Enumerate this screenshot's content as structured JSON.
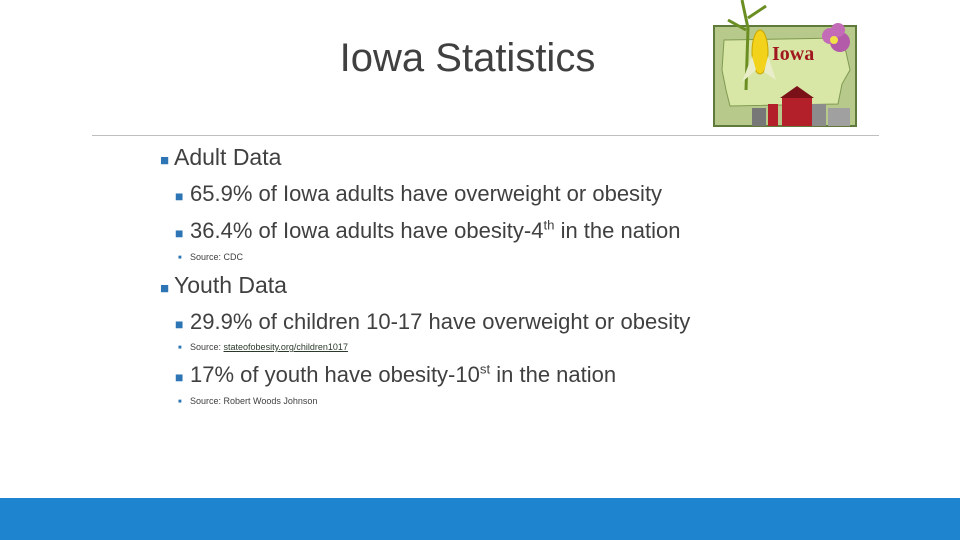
{
  "slide": {
    "title": "Iowa Statistics",
    "clipart_label": "Iowa",
    "accent_color": "#1f84cf",
    "bullet_color": "#2e75b6"
  },
  "adult": {
    "heading": "Adult Data",
    "stat1": "65.9%  of Iowa adults have overweight or obesity",
    "stat2_pre": "36.4% of Iowa adults have obesity-4",
    "stat2_sup": "th",
    "stat2_post": " in the nation",
    "source": "Source: CDC"
  },
  "youth": {
    "heading": "Youth Data",
    "stat1": "29.9% of children 10-17 have overweight or obesity",
    "source1_label": "Source: ",
    "source1_link": "stateofobesity.org/children1017",
    "stat2_pre": "17% of youth have obesity-10",
    "stat2_sup": "st",
    "stat2_post": " in the nation",
    "source2": "Source: Robert Woods Johnson"
  }
}
